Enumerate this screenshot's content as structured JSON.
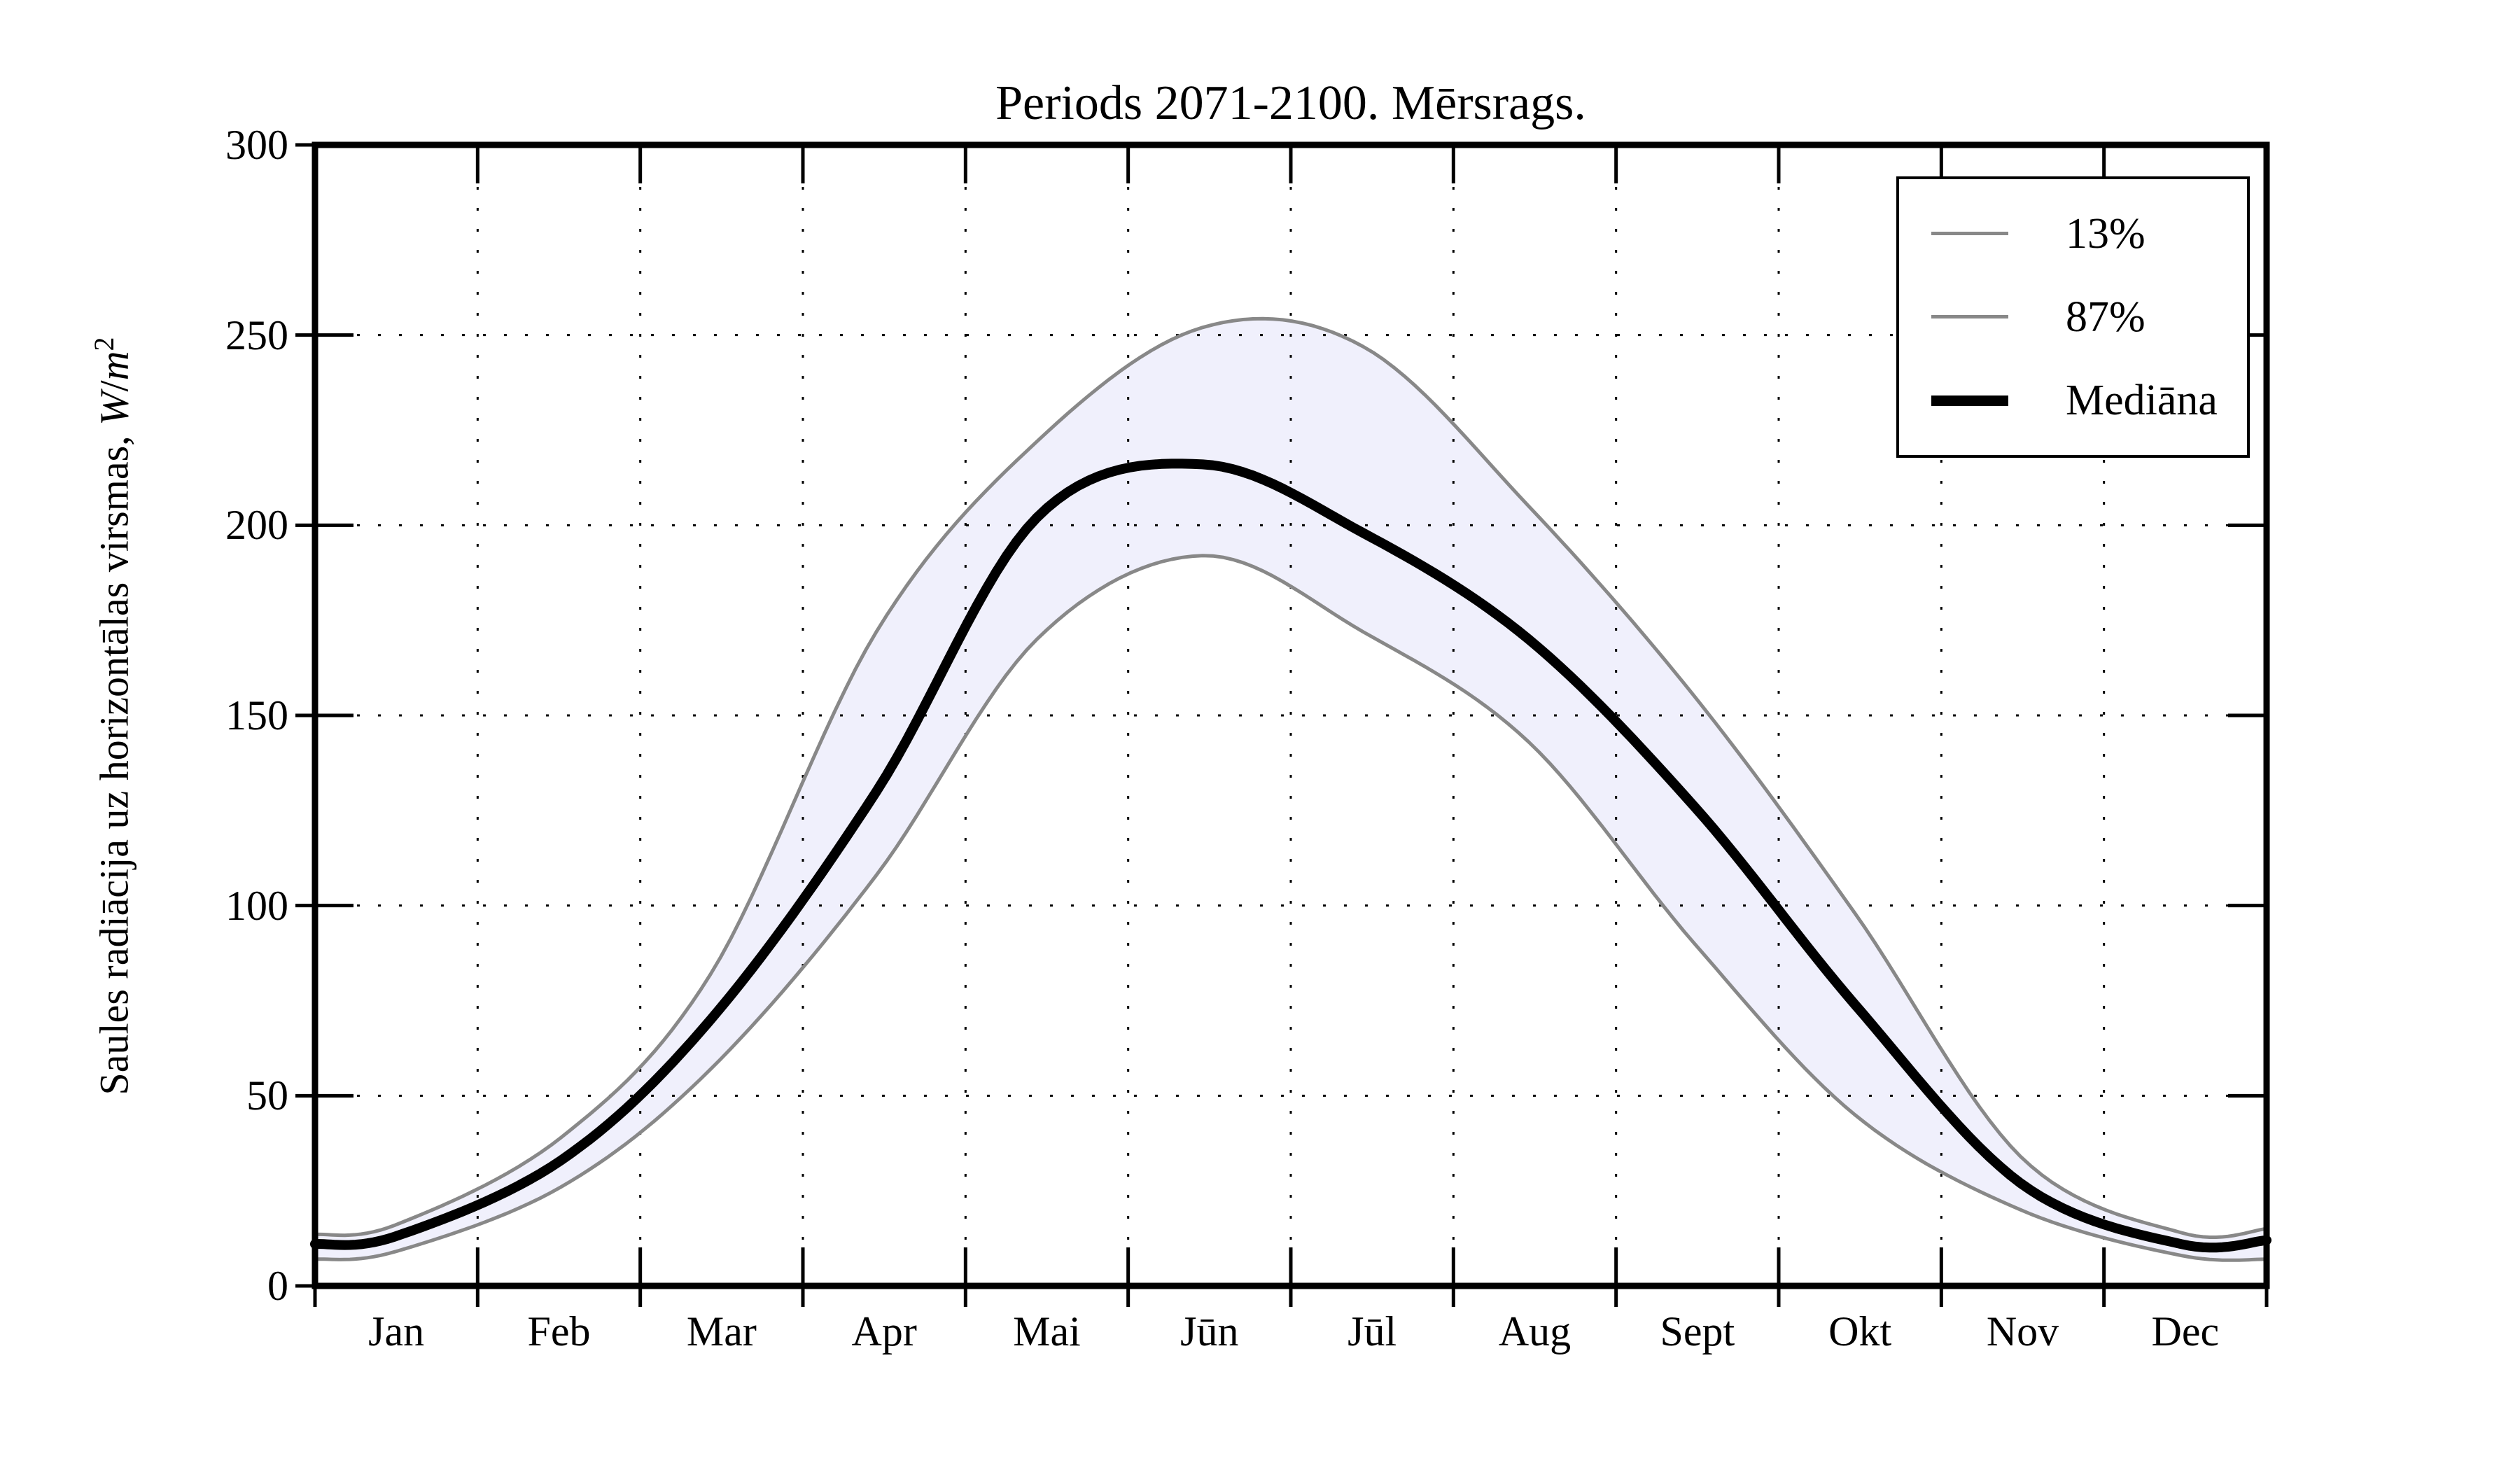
{
  "title": "Periods 2071-2100. Mērsrags.",
  "y_axis": {
    "label_text": "Saules radiācija uz horizontālas virsmas, ",
    "label_math_w": "W",
    "label_math_slash": "/",
    "label_math_m": "m",
    "label_math_exp": "2",
    "ticks": [
      "0",
      "50",
      "100",
      "150",
      "200",
      "250",
      "300"
    ]
  },
  "x_axis": {
    "months": [
      "Jan",
      "Feb",
      "Mar",
      "Apr",
      "Mai",
      "Jūn",
      "Jūl",
      "Aug",
      "Sept",
      "Okt",
      "Nov",
      "Dec"
    ]
  },
  "legend": {
    "items": [
      {
        "label": "13%",
        "color": "#888888",
        "thick": false
      },
      {
        "label": "87%",
        "color": "#888888",
        "thick": false
      },
      {
        "label": "Mediāna",
        "color": "#000000",
        "thick": true
      }
    ]
  },
  "colors": {
    "background": "#ffffff",
    "band_fill": "#F0F0FC",
    "percentile_line": "#888888",
    "median_line": "#000000",
    "grid_line": "#000000",
    "spine": "#000000"
  },
  "chart_data": {
    "type": "line",
    "title": "Periods 2071-2100. Mērsrags.",
    "ylabel": "Saules radiācija uz horizontālas virsmas, W/m²",
    "xlabel": "",
    "x_unit": "day_of_year",
    "xlim_days": [
      0,
      365
    ],
    "ylim": [
      0,
      300
    ],
    "yticks": [
      0,
      50,
      100,
      150,
      200,
      250,
      300
    ],
    "x_tick_labels": [
      "Jan",
      "Feb",
      "Mar",
      "Apr",
      "Mai",
      "Jūn",
      "Jūl",
      "Aug",
      "Sept",
      "Okt",
      "Nov",
      "Dec"
    ],
    "grid": "dotted",
    "legend_position": "upper right",
    "x_days": [
      0,
      15,
      46,
      74,
      105,
      135,
      166,
      196,
      227,
      258,
      288,
      319,
      349,
      365
    ],
    "series": [
      {
        "name": "13%",
        "role": "lower_percentile",
        "values": [
          7,
          9,
          26,
          57,
          108,
          170,
          192,
          172,
          143,
          90,
          45,
          20,
          8,
          7
        ]
      },
      {
        "name": "87%",
        "role": "upper_percentile",
        "values": [
          13.5,
          16,
          39,
          82,
          172,
          222,
          252,
          247,
          205,
          155,
          98,
          34,
          14,
          15
        ]
      },
      {
        "name": "Mediāna",
        "role": "median",
        "values": [
          11,
          13,
          33,
          70,
          130,
          202,
          216,
          198,
          170,
          126,
          74,
          27,
          11,
          12
        ]
      }
    ],
    "band": {
      "between": [
        "13%",
        "87%"
      ],
      "fill": "#F0F0FC"
    }
  }
}
